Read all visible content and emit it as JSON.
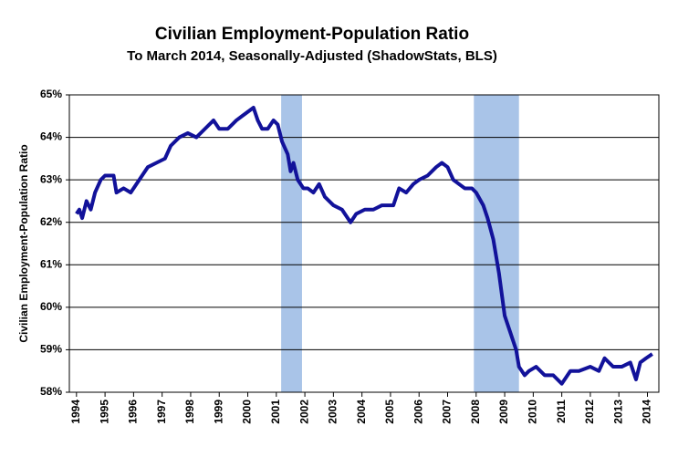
{
  "chart_data": {
    "type": "line",
    "title": "Civilian Employment-Population  Ratio",
    "subtitle": "To March 2014, Seasonally-Adjusted (ShadowStats, BLS)",
    "y_label": "Civilian Employment-Population  Ratio",
    "x": [
      1994.0,
      1994.1,
      1994.2,
      1994.35,
      1994.5,
      1994.65,
      1994.85,
      1995.0,
      1995.3,
      1995.4,
      1995.65,
      1995.9,
      1996.2,
      1996.5,
      1996.8,
      1997.1,
      1997.3,
      1997.6,
      1997.9,
      1998.2,
      1998.5,
      1998.8,
      1999.0,
      1999.3,
      1999.6,
      1999.8,
      2000.0,
      2000.2,
      2000.35,
      2000.5,
      2000.7,
      2000.9,
      2001.05,
      2001.2,
      2001.4,
      2001.5,
      2001.6,
      2001.75,
      2001.95,
      2002.1,
      2002.3,
      2002.5,
      2002.7,
      2003.0,
      2003.3,
      2003.6,
      2003.8,
      2004.1,
      2004.4,
      2004.7,
      2005.1,
      2005.3,
      2005.55,
      2005.8,
      2006.0,
      2006.3,
      2006.6,
      2006.8,
      2007.0,
      2007.2,
      2007.4,
      2007.6,
      2007.85,
      2008.0,
      2008.25,
      2008.4,
      2008.6,
      2008.8,
      2009.0,
      2009.2,
      2009.4,
      2009.5,
      2009.7,
      2009.85,
      2010.1,
      2010.4,
      2010.7,
      2011.0,
      2011.3,
      2011.6,
      2012.0,
      2012.3,
      2012.5,
      2012.8,
      2013.1,
      2013.4,
      2013.6,
      2013.75,
      2013.95,
      2014.17
    ],
    "series": [
      {
        "color": "#12129a",
        "values": [
          62.2,
          62.3,
          62.1,
          62.5,
          62.3,
          62.7,
          63.0,
          63.1,
          63.1,
          62.7,
          62.8,
          62.7,
          63.0,
          63.3,
          63.4,
          63.5,
          63.8,
          64.0,
          64.1,
          64.0,
          64.2,
          64.4,
          64.2,
          64.2,
          64.4,
          64.5,
          64.6,
          64.7,
          64.4,
          64.2,
          64.2,
          64.4,
          64.3,
          63.9,
          63.6,
          63.2,
          63.4,
          63.0,
          62.8,
          62.8,
          62.7,
          62.9,
          62.6,
          62.4,
          62.3,
          62.0,
          62.2,
          62.3,
          62.3,
          62.4,
          62.4,
          62.8,
          62.7,
          62.9,
          63.0,
          63.1,
          63.3,
          63.4,
          63.3,
          63.0,
          62.9,
          62.8,
          62.8,
          62.7,
          62.4,
          62.1,
          61.6,
          60.8,
          59.8,
          59.4,
          59.0,
          58.6,
          58.4,
          58.5,
          58.6,
          58.4,
          58.4,
          58.2,
          58.5,
          58.5,
          58.6,
          58.5,
          58.8,
          58.6,
          58.6,
          58.7,
          58.3,
          58.7,
          58.8,
          58.9
        ]
      }
    ],
    "shaded_periods": [
      [
        2001.17,
        2001.9
      ],
      [
        2007.92,
        2009.5
      ]
    ],
    "shade_color": "#a9c4e8",
    "xlim": [
      1993.75,
      2014.4
    ],
    "xticks": [
      1994,
      1995,
      1996,
      1997,
      1998,
      1999,
      2000,
      2001,
      2002,
      2003,
      2004,
      2005,
      2006,
      2007,
      2008,
      2009,
      2010,
      2011,
      2012,
      2013,
      2014
    ],
    "ylim": [
      58,
      65
    ],
    "yticks": [
      {
        "value": 58,
        "label": "58%"
      },
      {
        "value": 59,
        "label": "59%"
      },
      {
        "value": 60,
        "label": "60%"
      },
      {
        "value": 61,
        "label": "61%"
      },
      {
        "value": 62,
        "label": "62%"
      },
      {
        "value": 63,
        "label": "63%"
      },
      {
        "value": 64,
        "label": "64%"
      },
      {
        "value": 65,
        "label": "65%"
      }
    ],
    "grid": true
  }
}
